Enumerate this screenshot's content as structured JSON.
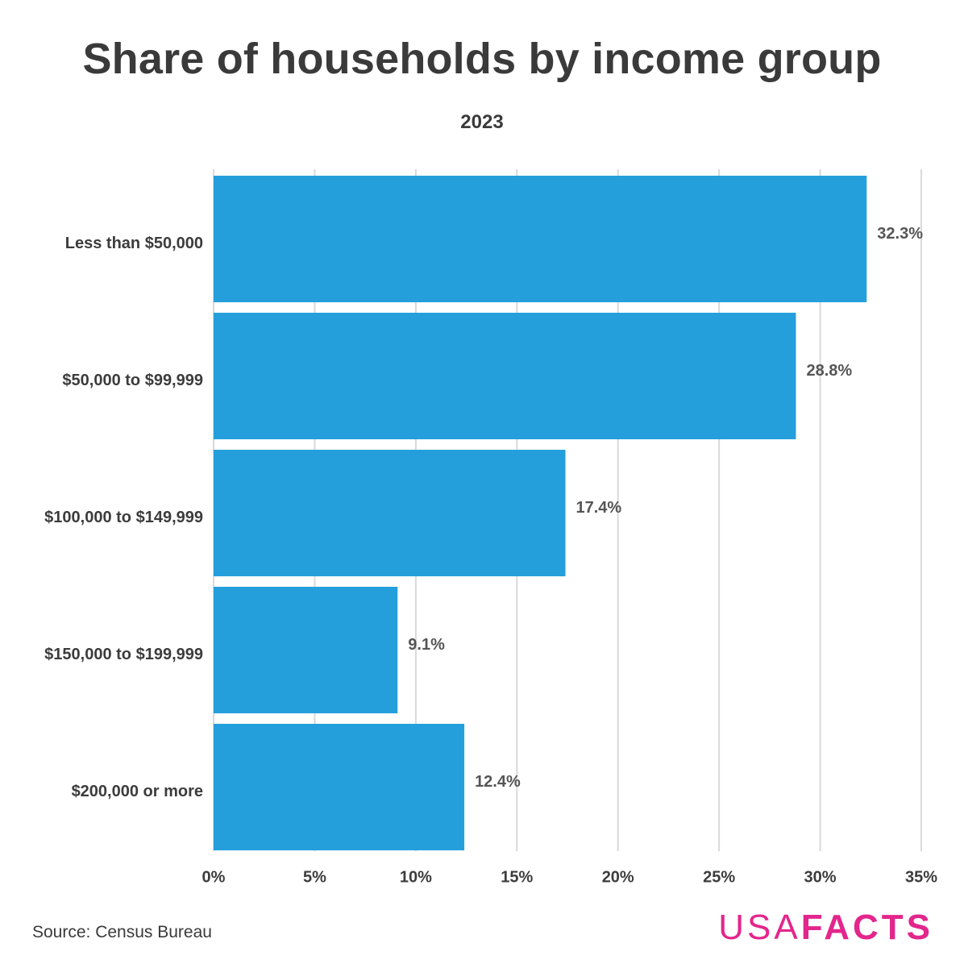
{
  "header": {
    "title": "Share of households by income group",
    "subtitle": "2023"
  },
  "footer": {
    "source": "Source: Census Bureau",
    "logo_usa": "USA",
    "logo_facts": "FACTS"
  },
  "colors": {
    "bar": "#259fdc",
    "grid": "#d9d9d9",
    "text": "#3c3c3c",
    "brand": "#e3268c"
  },
  "chart_data": {
    "type": "bar",
    "orientation": "horizontal",
    "title": "Share of households by income group",
    "subtitle": "2023",
    "categories": [
      "Less than $50,000",
      "$50,000 to $99,999",
      "$100,000 to $149,999",
      "$150,000 to $199,999",
      "$200,000 or more"
    ],
    "values": [
      32.3,
      28.8,
      17.4,
      9.1,
      12.4
    ],
    "value_labels": [
      "32.3%",
      "28.8%",
      "17.4%",
      "9.1%",
      "12.4%"
    ],
    "xlim": [
      0,
      35
    ],
    "xticks": [
      0,
      5,
      10,
      15,
      20,
      25,
      30,
      35
    ],
    "xtick_labels": [
      "0%",
      "5%",
      "10%",
      "15%",
      "20%",
      "25%",
      "30%",
      "35%"
    ],
    "xlabel": "",
    "ylabel": "",
    "grid": true,
    "legend": "none"
  }
}
